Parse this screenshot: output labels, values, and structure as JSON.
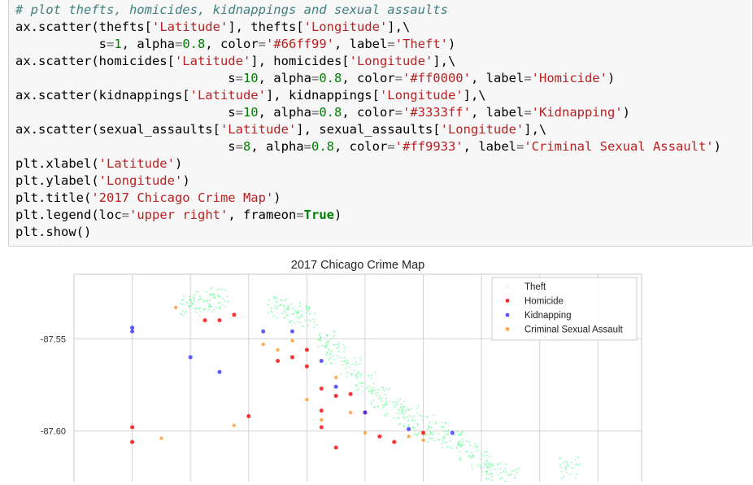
{
  "code_lines": [
    [
      {
        "t": "# plot thefts, homicides, kidnappings and sexual assaults",
        "c": "cm"
      }
    ],
    [
      {
        "t": "ax.scatter(thefts["
      },
      {
        "t": "'Latitude'",
        "c": "st"
      },
      {
        "t": "], thefts["
      },
      {
        "t": "'Longitude'",
        "c": "st"
      },
      {
        "t": "],\\"
      }
    ],
    [
      {
        "t": "           s"
      },
      {
        "t": "=",
        "c": "op"
      },
      {
        "t": "1",
        "c": "nu"
      },
      {
        "t": ", alpha"
      },
      {
        "t": "=",
        "c": "op"
      },
      {
        "t": "0.8",
        "c": "nu"
      },
      {
        "t": ", color"
      },
      {
        "t": "=",
        "c": "op"
      },
      {
        "t": "'#66ff99'",
        "c": "st"
      },
      {
        "t": ", label"
      },
      {
        "t": "=",
        "c": "op"
      },
      {
        "t": "'Theft'",
        "c": "st"
      },
      {
        "t": ")"
      }
    ],
    [
      {
        "t": "ax.scatter(homicides["
      },
      {
        "t": "'Latitude'",
        "c": "st"
      },
      {
        "t": "], homicides["
      },
      {
        "t": "'Longitude'",
        "c": "st"
      },
      {
        "t": "],\\"
      }
    ],
    [
      {
        "t": "                            s"
      },
      {
        "t": "=",
        "c": "op"
      },
      {
        "t": "10",
        "c": "nu"
      },
      {
        "t": ", alpha"
      },
      {
        "t": "=",
        "c": "op"
      },
      {
        "t": "0.8",
        "c": "nu"
      },
      {
        "t": ", color"
      },
      {
        "t": "=",
        "c": "op"
      },
      {
        "t": "'#ff0000'",
        "c": "st"
      },
      {
        "t": ", label"
      },
      {
        "t": "=",
        "c": "op"
      },
      {
        "t": "'Homicide'",
        "c": "st"
      },
      {
        "t": ")"
      }
    ],
    [
      {
        "t": "ax.scatter(kidnappings["
      },
      {
        "t": "'Latitude'",
        "c": "st"
      },
      {
        "t": "], kidnappings["
      },
      {
        "t": "'Longitude'",
        "c": "st"
      },
      {
        "t": "],\\"
      }
    ],
    [
      {
        "t": "                            s"
      },
      {
        "t": "=",
        "c": "op"
      },
      {
        "t": "10",
        "c": "nu"
      },
      {
        "t": ", alpha"
      },
      {
        "t": "=",
        "c": "op"
      },
      {
        "t": "0.8",
        "c": "nu"
      },
      {
        "t": ", color"
      },
      {
        "t": "=",
        "c": "op"
      },
      {
        "t": "'#3333ff'",
        "c": "st"
      },
      {
        "t": ", label"
      },
      {
        "t": "=",
        "c": "op"
      },
      {
        "t": "'Kidnapping'",
        "c": "st"
      },
      {
        "t": ")"
      }
    ],
    [
      {
        "t": "ax.scatter(sexual_assaults["
      },
      {
        "t": "'Latitude'",
        "c": "st"
      },
      {
        "t": "], sexual_assaults["
      },
      {
        "t": "'Longitude'",
        "c": "st"
      },
      {
        "t": "],\\"
      }
    ],
    [
      {
        "t": "                            s"
      },
      {
        "t": "=",
        "c": "op"
      },
      {
        "t": "8",
        "c": "nu"
      },
      {
        "t": ", alpha"
      },
      {
        "t": "=",
        "c": "op"
      },
      {
        "t": "0.8",
        "c": "nu"
      },
      {
        "t": ", color"
      },
      {
        "t": "=",
        "c": "op"
      },
      {
        "t": "'#ff9933'",
        "c": "st"
      },
      {
        "t": ", label"
      },
      {
        "t": "=",
        "c": "op"
      },
      {
        "t": "'Criminal Sexual Assault'",
        "c": "st"
      },
      {
        "t": ")"
      }
    ],
    [
      {
        "t": "plt.xlabel("
      },
      {
        "t": "'Latitude'",
        "c": "st"
      },
      {
        "t": ")"
      }
    ],
    [
      {
        "t": "plt.ylabel("
      },
      {
        "t": "'Longitude'",
        "c": "st"
      },
      {
        "t": ")"
      }
    ],
    [
      {
        "t": "plt.title("
      },
      {
        "t": "'2017 Chicago Crime Map'",
        "c": "st"
      },
      {
        "t": ")"
      }
    ],
    [
      {
        "t": "plt.legend(loc"
      },
      {
        "t": "=",
        "c": "op"
      },
      {
        "t": "'upper right'",
        "c": "st"
      },
      {
        "t": ", frameon"
      },
      {
        "t": "=",
        "c": "op"
      },
      {
        "t": "True",
        "c": "kw"
      },
      {
        "t": ")"
      }
    ],
    [
      {
        "t": "plt.show()"
      }
    ]
  ],
  "chart_data": {
    "type": "scatter",
    "title": "2017 Chicago Crime Map",
    "xlabel": "Latitude",
    "ylabel": "Longitude",
    "xlim": [
      41.64,
      42.03
    ],
    "ylim": [
      -87.628,
      -87.515
    ],
    "y_ticks": [
      -87.55,
      -87.6
    ],
    "y_tick_labels": [
      "-87.55",
      "-87.60"
    ],
    "x_gridlines": [
      41.68,
      41.72,
      41.76,
      41.8,
      41.84,
      41.88,
      41.92,
      41.96,
      42.0
    ],
    "legend_position": "upper right",
    "series": [
      {
        "name": "Theft",
        "color": "#66ff99",
        "points": [
          [
            41.72,
            -87.532
          ],
          [
            41.73,
            -87.53
          ],
          [
            41.74,
            -87.528
          ],
          [
            41.78,
            -87.533
          ],
          [
            41.79,
            -87.536
          ],
          [
            41.8,
            -87.538
          ],
          [
            41.815,
            -87.551
          ],
          [
            41.82,
            -87.558
          ],
          [
            41.83,
            -87.566
          ],
          [
            41.84,
            -87.574
          ],
          [
            41.85,
            -87.582
          ],
          [
            41.86,
            -87.588
          ],
          [
            41.87,
            -87.592
          ],
          [
            41.88,
            -87.597
          ],
          [
            41.89,
            -87.601
          ],
          [
            41.9,
            -87.605
          ],
          [
            41.91,
            -87.611
          ],
          [
            41.92,
            -87.617
          ],
          [
            41.93,
            -87.622
          ],
          [
            41.94,
            -87.626
          ],
          [
            41.98,
            -87.62
          ]
        ]
      },
      {
        "name": "Homicide",
        "color": "#ff0000",
        "points": [
          [
            41.68,
            -87.598
          ],
          [
            41.68,
            -87.606
          ],
          [
            41.73,
            -87.54
          ],
          [
            41.74,
            -87.54
          ],
          [
            41.75,
            -87.537
          ],
          [
            41.76,
            -87.592
          ],
          [
            41.78,
            -87.562
          ],
          [
            41.79,
            -87.56
          ],
          [
            41.8,
            -87.556
          ],
          [
            41.8,
            -87.565
          ],
          [
            41.81,
            -87.577
          ],
          [
            41.81,
            -87.589
          ],
          [
            41.81,
            -87.598
          ],
          [
            41.82,
            -87.581
          ],
          [
            41.82,
            -87.609
          ],
          [
            41.83,
            -87.58
          ],
          [
            41.84,
            -87.59
          ],
          [
            41.85,
            -87.603
          ],
          [
            41.86,
            -87.606
          ],
          [
            41.88,
            -87.601
          ]
        ]
      },
      {
        "name": "Kidnapping",
        "color": "#3333ff",
        "points": [
          [
            41.68,
            -87.544
          ],
          [
            41.68,
            -87.546
          ],
          [
            41.72,
            -87.56
          ],
          [
            41.74,
            -87.568
          ],
          [
            41.77,
            -87.546
          ],
          [
            41.79,
            -87.546
          ],
          [
            41.81,
            -87.562
          ],
          [
            41.82,
            -87.576
          ],
          [
            41.84,
            -87.59
          ],
          [
            41.87,
            -87.599
          ],
          [
            41.9,
            -87.601
          ]
        ]
      },
      {
        "name": "Criminal Sexual Assault",
        "color": "#ff9933",
        "points": [
          [
            41.71,
            -87.533
          ],
          [
            41.7,
            -87.604
          ],
          [
            41.75,
            -87.597
          ],
          [
            41.77,
            -87.553
          ],
          [
            41.78,
            -87.556
          ],
          [
            41.79,
            -87.551
          ],
          [
            41.8,
            -87.583
          ],
          [
            41.81,
            -87.594
          ],
          [
            41.82,
            -87.571
          ],
          [
            41.83,
            -87.59
          ],
          [
            41.84,
            -87.601
          ],
          [
            41.87,
            -87.603
          ],
          [
            41.88,
            -87.605
          ]
        ]
      }
    ]
  }
}
